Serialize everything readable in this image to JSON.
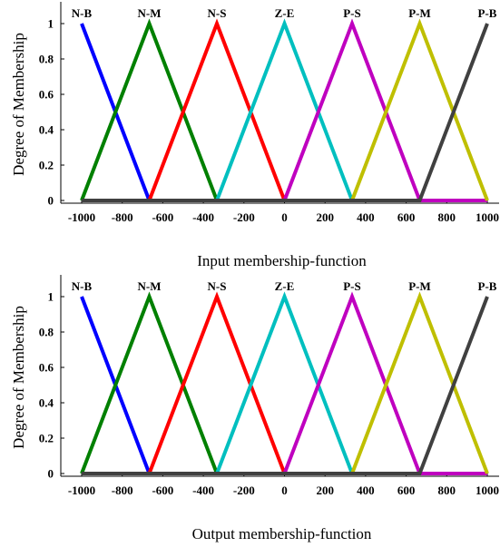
{
  "chart_data": [
    {
      "type": "line",
      "caption": "Input membership-function",
      "ylabel": "Degree of  Membership",
      "xlim": [
        -1000,
        1000
      ],
      "ylim": [
        0,
        1
      ],
      "xticks": [
        -1000,
        -800,
        -600,
        -400,
        -200,
        0,
        200,
        400,
        600,
        800,
        1000
      ],
      "yticks": [
        0,
        0.2,
        0.4,
        0.6,
        0.8,
        1
      ],
      "grid": false,
      "series": [
        {
          "name": "N-B",
          "color": "#0000ff",
          "x": [
            -1000,
            -666.7,
            1000
          ],
          "y": [
            1,
            0,
            0
          ]
        },
        {
          "name": "N-M",
          "color": "#008000",
          "x": [
            -1000,
            -666.7,
            -333.3,
            1000
          ],
          "y": [
            0,
            1,
            0,
            0
          ]
        },
        {
          "name": "N-S",
          "color": "#ff0000",
          "x": [
            -666.7,
            -333.3,
            0
          ],
          "y": [
            0,
            1,
            0
          ]
        },
        {
          "name": "Z-E",
          "color": "#00bfbf",
          "x": [
            -333.3,
            0,
            333.3
          ],
          "y": [
            0,
            1,
            0
          ]
        },
        {
          "name": "P-S",
          "color": "#bf00bf",
          "x": [
            0,
            333.3,
            666.7,
            1000
          ],
          "y": [
            0,
            1,
            0,
            0
          ]
        },
        {
          "name": "P-M",
          "color": "#bfbf00",
          "x": [
            333.3,
            666.7,
            1000
          ],
          "y": [
            0,
            1,
            0
          ]
        },
        {
          "name": "P-B",
          "color": "#404040",
          "x": [
            -1000,
            666.7,
            1000
          ],
          "y": [
            0,
            0,
            1
          ]
        }
      ]
    },
    {
      "type": "line",
      "caption": "Output membership-function",
      "ylabel": "Degree of  Membership",
      "xlim": [
        -1000,
        1000
      ],
      "ylim": [
        0,
        1
      ],
      "xticks": [
        -1000,
        -800,
        -600,
        -400,
        -200,
        0,
        200,
        400,
        600,
        800,
        1000
      ],
      "yticks": [
        0,
        0.2,
        0.4,
        0.6,
        0.8,
        1
      ],
      "grid": false,
      "series": [
        {
          "name": "N-B",
          "color": "#0000ff",
          "x": [
            -1000,
            -666.7,
            1000
          ],
          "y": [
            1,
            0,
            0
          ]
        },
        {
          "name": "N-M",
          "color": "#008000",
          "x": [
            -1000,
            -666.7,
            -333.3,
            1000
          ],
          "y": [
            0,
            1,
            0,
            0
          ]
        },
        {
          "name": "N-S",
          "color": "#ff0000",
          "x": [
            -666.7,
            -333.3,
            0
          ],
          "y": [
            0,
            1,
            0
          ]
        },
        {
          "name": "Z-E",
          "color": "#00bfbf",
          "x": [
            -333.3,
            0,
            333.3
          ],
          "y": [
            0,
            1,
            0
          ]
        },
        {
          "name": "P-S",
          "color": "#bf00bf",
          "x": [
            0,
            333.3,
            666.7,
            1000
          ],
          "y": [
            0,
            1,
            0,
            0
          ]
        },
        {
          "name": "P-M",
          "color": "#bfbf00",
          "x": [
            333.3,
            666.7,
            1000
          ],
          "y": [
            0,
            1,
            0
          ]
        },
        {
          "name": "P-B",
          "color": "#404040",
          "x": [
            -1000,
            666.7,
            1000
          ],
          "y": [
            0,
            0,
            1
          ]
        }
      ]
    }
  ]
}
